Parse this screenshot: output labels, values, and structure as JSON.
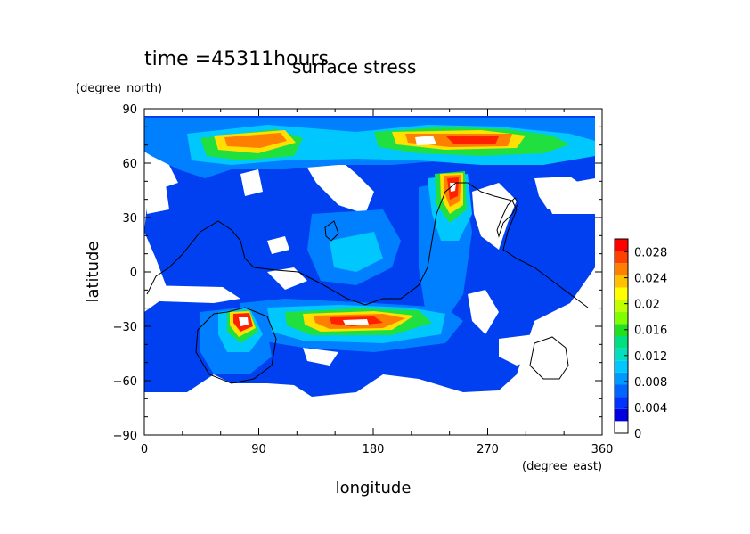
{
  "chart_data": {
    "type": "heatmap",
    "title": "surface stress",
    "subtitle": "time =45311hours",
    "xlabel": "longitude",
    "ylabel": "latitude",
    "xunit": "(degree_east)",
    "yunit": "(degree_north)",
    "xlim": [
      0,
      360
    ],
    "ylim": [
      -90,
      90
    ],
    "x_ticks": [
      0,
      90,
      180,
      270,
      360
    ],
    "y_ticks": [
      -90,
      -60,
      -30,
      0,
      30,
      60,
      90
    ],
    "colorbar": {
      "min": 0,
      "max": 0.03,
      "ticks": [
        "0",
        "0.004",
        "0.008",
        "0.012",
        "0.016",
        "0.02",
        "0.024",
        "0.028"
      ],
      "tick_values": [
        0,
        0.004,
        0.008,
        0.012,
        0.016,
        0.02,
        0.024,
        0.028
      ],
      "colors": [
        "#ffffff",
        "#0000e0",
        "#0033ff",
        "#0066ff",
        "#0099ff",
        "#00c8ff",
        "#00e0c0",
        "#00e080",
        "#20e020",
        "#80ff00",
        "#c0ff00",
        "#ffff00",
        "#ffc000",
        "#ff8000",
        "#ff4000",
        "#ff0000"
      ]
    },
    "features": [
      {
        "name": "northern band",
        "lon": [
          40,
          360
        ],
        "lat": [
          55,
          85
        ],
        "peak_value": 0.028
      },
      {
        "name": "southern band",
        "lon": [
          110,
          240
        ],
        "lat": [
          -40,
          -20
        ],
        "peak_value": 0.028
      },
      {
        "name": "southwest spot",
        "lon": [
          60,
          80
        ],
        "lat": [
          -35,
          -20
        ],
        "peak_value": 0.028
      },
      {
        "name": "northern column",
        "lon": [
          230,
          260
        ],
        "lat": [
          20,
          60
        ],
        "peak_value": 0.026
      }
    ]
  }
}
